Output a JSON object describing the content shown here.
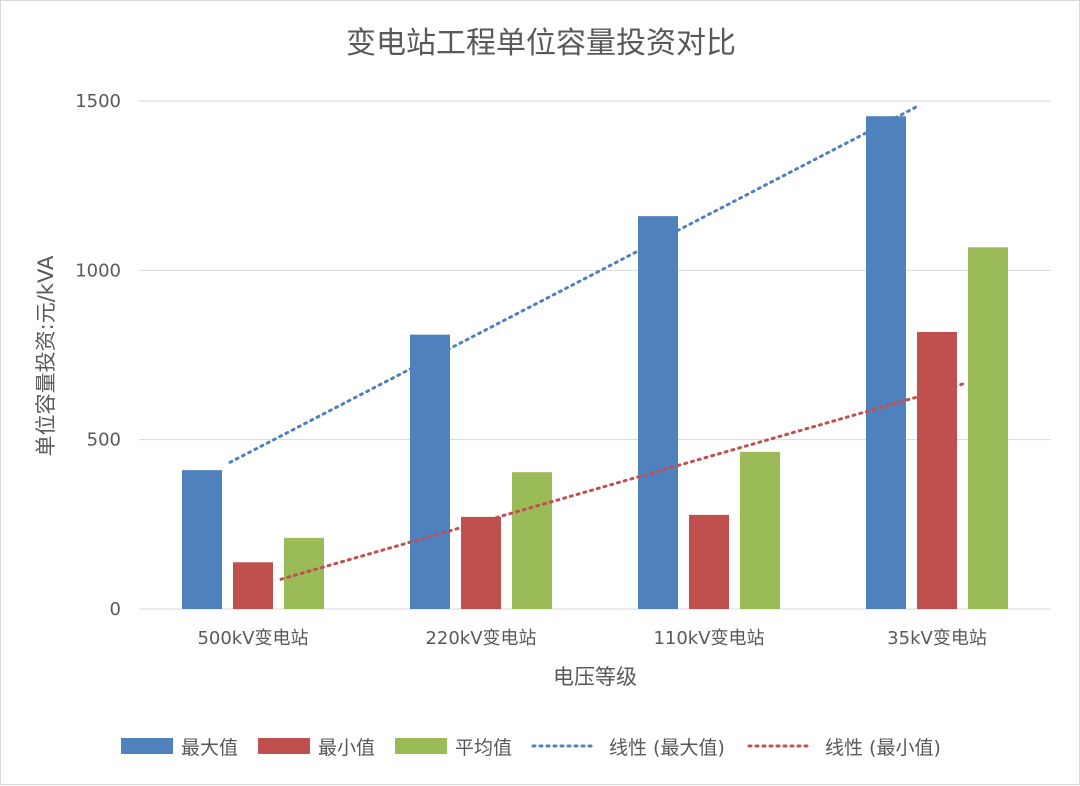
{
  "chart_data": {
    "type": "bar",
    "title": "变电站工程单位容量投资对比",
    "xlabel": "电压等级",
    "ylabel": "单位容量投资:元/kVA",
    "ylim": [
      0,
      1500
    ],
    "yticks": [
      "0",
      "500",
      "1000",
      "1500"
    ],
    "grid": true,
    "legend_position": "bottom",
    "categories": [
      "500kV变电站",
      "220kV变电站",
      "110kV变电站",
      "35kV变电站"
    ],
    "series": [
      {
        "name": "最大值",
        "color": "#4f81bd",
        "values": [
          410,
          810,
          1160,
          1455
        ]
      },
      {
        "name": "最小值",
        "color": "#c0504d",
        "values": [
          138,
          272,
          278,
          818
        ]
      },
      {
        "name": "平均值",
        "color": "#9bbb59",
        "values": [
          210,
          404,
          464,
          1068
        ]
      }
    ],
    "trendlines": [
      {
        "name": "线性 (最大值)",
        "of_series": "最大值",
        "style": "dotted",
        "color": "#4f81bd",
        "start": 433,
        "end": 1482
      },
      {
        "name": "线性 (最小值)",
        "of_series": "最小值",
        "style": "dotted",
        "color": "#c0504d",
        "start": 88,
        "end": 668
      }
    ]
  }
}
